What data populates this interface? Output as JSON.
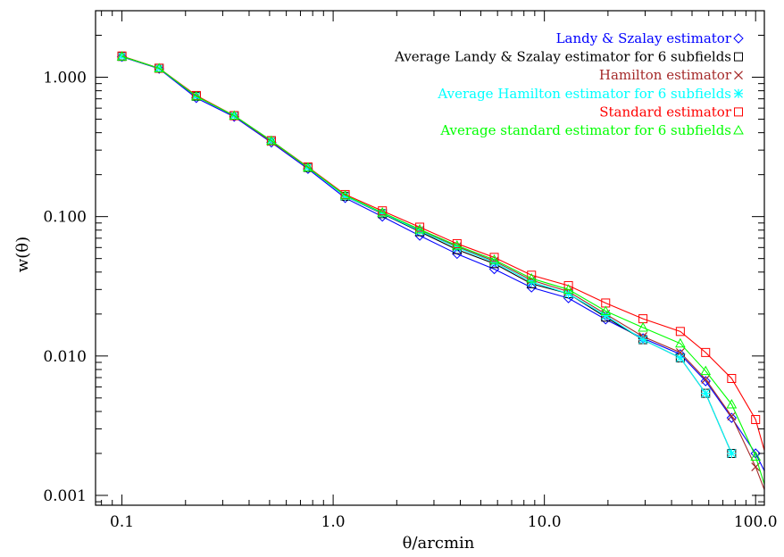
{
  "chart_data": {
    "type": "line",
    "xlabel": "θ/arcmin",
    "ylabel": "w(θ)",
    "x_scale": "log",
    "y_scale": "log",
    "xlim": [
      0.075,
      110
    ],
    "ylim": [
      0.00085,
      3.0
    ],
    "xticks": [
      0.1,
      1.0,
      10.0,
      100.0
    ],
    "xtick_labels": [
      "0.1",
      "1.0",
      "10.0",
      "100.0"
    ],
    "yticks": [
      1.0,
      0.1,
      0.01,
      0.001
    ],
    "ytick_labels": [
      "1.000",
      "0.100",
      "0.010",
      "0.001"
    ],
    "grid": false,
    "legend_position": "top-right",
    "series": [
      {
        "name": "Landy & Szalay estimator",
        "color": "#0000ff",
        "marker": "diamond",
        "x": [
          0.1,
          0.15,
          0.225,
          0.34,
          0.51,
          0.76,
          1.14,
          1.71,
          2.57,
          3.86,
          5.79,
          8.69,
          13.0,
          19.5,
          29.3,
          44.0,
          58.0,
          77.0,
          100.0,
          110.0
        ],
        "y": [
          1.4,
          1.15,
          0.71,
          0.52,
          0.34,
          0.22,
          0.136,
          0.1,
          0.073,
          0.054,
          0.042,
          0.031,
          0.026,
          0.0183,
          0.0134,
          0.0103,
          0.0066,
          0.0036,
          0.002,
          0.0015
        ]
      },
      {
        "name": "Average Landy & Szalay estimator for 6 subfields",
        "color": "#000000",
        "marker": "square",
        "x": [
          0.1,
          0.15,
          0.225,
          0.34,
          0.51,
          0.76,
          1.14,
          1.71,
          2.57,
          3.86,
          5.79,
          8.69,
          13.0,
          19.5,
          29.3,
          44.0,
          58.0,
          77.0
        ],
        "y": [
          1.41,
          1.16,
          0.73,
          0.53,
          0.35,
          0.225,
          0.14,
          0.105,
          0.078,
          0.058,
          0.046,
          0.033,
          0.028,
          0.019,
          0.0131,
          0.0097,
          0.0054,
          0.002
        ]
      },
      {
        "name": "Hamilton estimator",
        "color": "#a52a2a",
        "marker": "x",
        "x": [
          0.1,
          0.15,
          0.225,
          0.34,
          0.51,
          0.76,
          1.14,
          1.71,
          2.57,
          3.86,
          5.79,
          8.69,
          13.0,
          19.5,
          29.3,
          44.0,
          58.0,
          77.0,
          100.0,
          110.0
        ],
        "y": [
          1.41,
          1.16,
          0.73,
          0.53,
          0.345,
          0.225,
          0.141,
          0.106,
          0.08,
          0.061,
          0.048,
          0.035,
          0.029,
          0.02,
          0.0138,
          0.0106,
          0.0068,
          0.0037,
          0.0016,
          0.0011
        ]
      },
      {
        "name": "Average Hamilton estimator for 6 subfields",
        "color": "#00ffff",
        "marker": "asterisk",
        "x": [
          0.1,
          0.15,
          0.225,
          0.34,
          0.51,
          0.76,
          1.14,
          1.71,
          2.57,
          3.86,
          5.79,
          8.69,
          13.0,
          19.5,
          29.3,
          44.0,
          58.0,
          77.0
        ],
        "y": [
          1.41,
          1.16,
          0.73,
          0.53,
          0.35,
          0.225,
          0.14,
          0.106,
          0.079,
          0.06,
          0.047,
          0.034,
          0.028,
          0.0195,
          0.0131,
          0.0097,
          0.0054,
          0.002
        ]
      },
      {
        "name": "Standard estimator",
        "color": "#ff0000",
        "marker": "square",
        "x": [
          0.1,
          0.15,
          0.225,
          0.34,
          0.51,
          0.76,
          1.14,
          1.71,
          2.57,
          3.86,
          5.79,
          8.69,
          13.0,
          19.5,
          29.3,
          44.0,
          58.0,
          77.0,
          100.0,
          110.0
        ],
        "y": [
          1.42,
          1.16,
          0.74,
          0.53,
          0.35,
          0.227,
          0.144,
          0.11,
          0.084,
          0.064,
          0.051,
          0.038,
          0.032,
          0.024,
          0.0185,
          0.015,
          0.0106,
          0.0069,
          0.0035,
          0.0021
        ]
      },
      {
        "name": "Average standard estimator for 6 subfields",
        "color": "#00ff00",
        "marker": "triangle",
        "x": [
          0.1,
          0.15,
          0.225,
          0.34,
          0.51,
          0.76,
          1.14,
          1.71,
          2.57,
          3.86,
          5.79,
          8.69,
          13.0,
          19.5,
          29.3,
          44.0,
          58.0,
          77.0,
          100.0,
          110.0
        ],
        "y": [
          1.41,
          1.16,
          0.73,
          0.53,
          0.35,
          0.225,
          0.142,
          0.107,
          0.081,
          0.062,
          0.049,
          0.036,
          0.03,
          0.021,
          0.016,
          0.0123,
          0.0078,
          0.0045,
          0.0019,
          0.0012
        ]
      }
    ]
  }
}
